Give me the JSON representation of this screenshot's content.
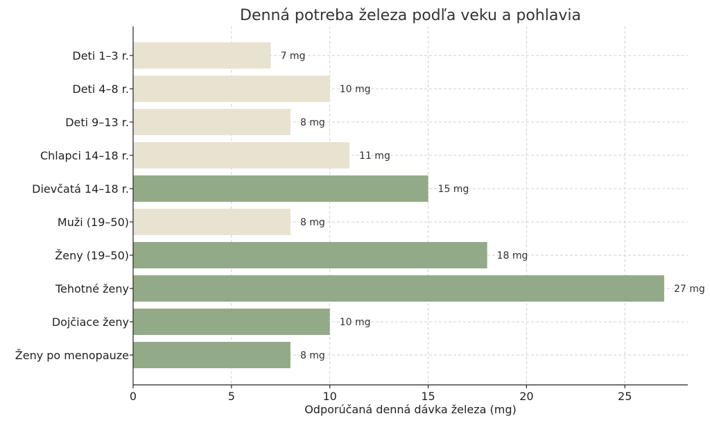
{
  "chart_data": {
    "type": "bar",
    "orientation": "horizontal",
    "title": "Denná potreba železa podľa veku a pohlavia",
    "xlabel": "Odporúčaná denná dávka železa (mg)",
    "ylabel": "",
    "xlim": [
      0,
      28.2
    ],
    "xticks": [
      0,
      5,
      10,
      15,
      20,
      25
    ],
    "grid": true,
    "value_suffix": " mg",
    "categories": [
      "Deti 1–3 r.",
      "Deti 4–8 r.",
      "Deti 9–13 r.",
      "Chlapci 14–18 r.",
      "Dievčatá 14–18 r.",
      "Muži (19–50)",
      "Ženy (19–50)",
      "Tehotné ženy",
      "Dojčiace ženy",
      "Ženy po menopauze"
    ],
    "values": [
      7,
      10,
      8,
      11,
      15,
      8,
      18,
      27,
      10,
      8
    ],
    "bar_colors": [
      "#e8e2d0",
      "#e8e2d0",
      "#e8e2d0",
      "#e8e2d0",
      "#93aa88",
      "#e8e2d0",
      "#93aa88",
      "#93aa88",
      "#93aa88",
      "#93aa88"
    ]
  }
}
